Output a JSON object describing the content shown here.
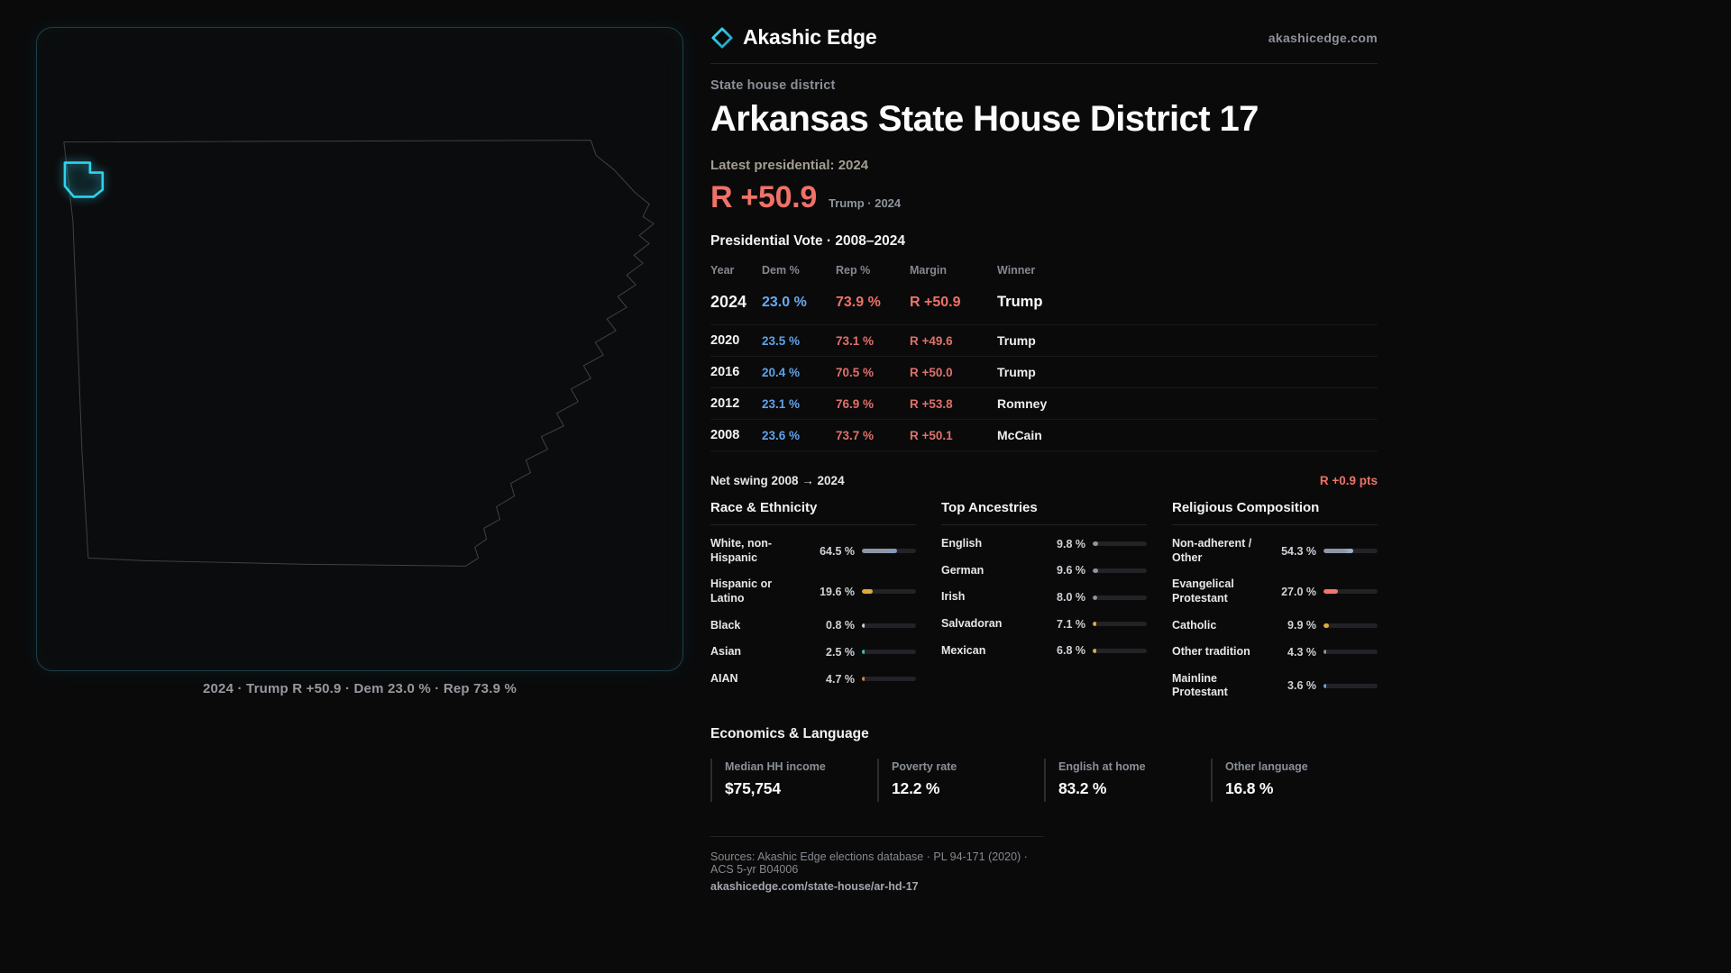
{
  "colors": {
    "accent_cyan": "#2ed3ee",
    "rep_red": "#ef7268",
    "dem_blue": "#5fa2e8"
  },
  "map": {
    "caption": "2024 · Trump R +50.9 · Dem 23.0 % · Rep 73.9 %"
  },
  "header": {
    "brand": "Akashic Edge",
    "site": "akashicedge.com"
  },
  "page": {
    "kicker": "State house district",
    "title": "Arkansas State House District 17",
    "latest_label": "Latest presidential: 2024",
    "margin_value": "R +50.9",
    "margin_caption": "Trump · 2024",
    "table_title": "Presidential Vote · 2008–2024"
  },
  "vote_table": {
    "headers": [
      "Year",
      "Dem %",
      "Rep %",
      "Margin",
      "Winner"
    ],
    "rows": [
      {
        "year": "2024",
        "dem": "23.0 %",
        "rep": "73.9 %",
        "margin": "R +50.9",
        "winner": "Trump",
        "featured": true
      },
      {
        "year": "2020",
        "dem": "23.5 %",
        "rep": "73.1 %",
        "margin": "R +49.6",
        "winner": "Trump"
      },
      {
        "year": "2016",
        "dem": "20.4 %",
        "rep": "70.5 %",
        "margin": "R +50.0",
        "winner": "Trump"
      },
      {
        "year": "2012",
        "dem": "23.1 %",
        "rep": "76.9 %",
        "margin": "R +53.8",
        "winner": "Romney"
      },
      {
        "year": "2008",
        "dem": "23.6 %",
        "rep": "73.7 %",
        "margin": "R +50.1",
        "winner": "McCain"
      }
    ]
  },
  "net_swing": {
    "label": "Net swing 2008 → 2024",
    "value": "R +0.9 pts"
  },
  "demographics": [
    {
      "title": "Race & Ethnicity",
      "rows": [
        {
          "label": "White, non-Hispanic",
          "value": "64.5 %",
          "pct": 64.5,
          "color": "linear-gradient(90deg,#8f97a6 68%,#7d9ac8)"
        },
        {
          "label": "Hispanic or Latino",
          "value": "19.6 %",
          "pct": 19.6,
          "color": "#d9aa3f"
        },
        {
          "label": "Black",
          "value": "0.8 %",
          "pct": 0.8,
          "color": "#c9ccd2"
        },
        {
          "label": "Asian",
          "value": "2.5 %",
          "pct": 2.5,
          "color": "#35c4b0"
        },
        {
          "label": "AIAN",
          "value": "4.7 %",
          "pct": 4.7,
          "color": "#d9823f"
        }
      ]
    },
    {
      "title": "Top Ancestries",
      "rows": [
        {
          "label": "English",
          "value": "9.8 %",
          "pct": 9.8,
          "color": "#8e939c"
        },
        {
          "label": "German",
          "value": "9.6 %",
          "pct": 9.6,
          "color": "#8e939c"
        },
        {
          "label": "Irish",
          "value": "8.0 %",
          "pct": 8.0,
          "color": "#8e939c"
        },
        {
          "label": "Salvadoran",
          "value": "7.1 %",
          "pct": 7.1,
          "color": "#d9aa3f"
        },
        {
          "label": "Mexican",
          "value": "6.8 %",
          "pct": 6.8,
          "color": "#d9aa3f"
        }
      ]
    },
    {
      "title": "Religious Composition",
      "rows": [
        {
          "label": "Non-adherent / Other",
          "value": "54.3 %",
          "pct": 54.3,
          "color": "linear-gradient(90deg,#8f97a6 70%,#9fb6d8)"
        },
        {
          "label": "Evangelical Protestant",
          "value": "27.0 %",
          "pct": 27.0,
          "color": "#ef776d"
        },
        {
          "label": "Catholic",
          "value": "9.9 %",
          "pct": 9.9,
          "color": "#d9aa3f"
        },
        {
          "label": "Other tradition",
          "value": "4.3 %",
          "pct": 4.3,
          "color": "#8e939c"
        },
        {
          "label": "Mainline Protestant",
          "value": "3.6 %",
          "pct": 3.6,
          "color": "#6a9fe0"
        }
      ]
    }
  ],
  "economics": {
    "title": "Economics & Language",
    "stats": [
      {
        "label": "Median HH income",
        "value": "$75,754"
      },
      {
        "label": "Poverty rate",
        "value": "12.2 %"
      },
      {
        "label": "English at home",
        "value": "83.2 %"
      },
      {
        "label": "Other language",
        "value": "16.8 %"
      }
    ]
  },
  "footer": {
    "sources": "Sources: Akashic Edge elections database · PL 94-171 (2020) · ACS 5-yr B04006",
    "permalink": "akashicedge.com/state-house/ar-hd-17"
  }
}
